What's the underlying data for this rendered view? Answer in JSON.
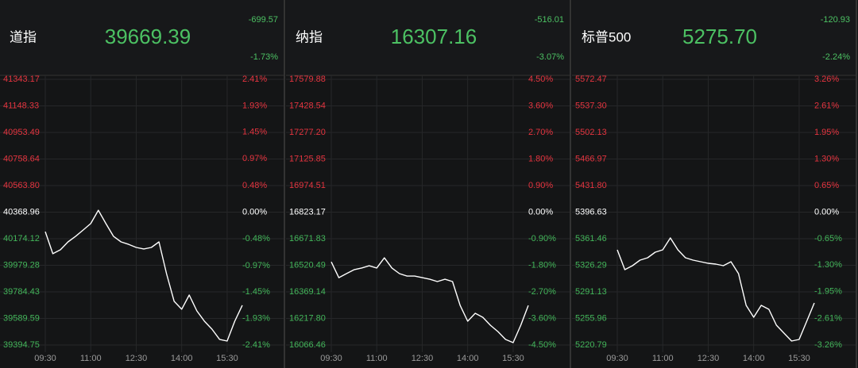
{
  "chart_data": [
    {
      "type": "line",
      "title": "道指",
      "price": "39669.39",
      "change": "-699.57",
      "change_pct": "-1.73%",
      "color": "#ffffff",
      "up_color": "#e5343f",
      "down_color": "#43b65a",
      "flat_color": "#ffffff",
      "categories": [
        "09:30",
        null,
        null,
        null,
        null,
        null,
        "11:00",
        null,
        null,
        null,
        null,
        null,
        "12:30",
        null,
        null,
        null,
        null,
        null,
        "14:00",
        null,
        null,
        null,
        null,
        null,
        "15:30",
        null,
        null
      ],
      "values": [
        40226,
        40064,
        40093,
        40151,
        40192,
        40238,
        40285,
        40383,
        40285,
        40192,
        40151,
        40133,
        40110,
        40099,
        40110,
        40151,
        39918,
        39715,
        39657,
        39761,
        39645,
        39569,
        39511,
        39436,
        39424,
        39569,
        39686
      ],
      "ylim": [
        39394.75,
        41343.17
      ],
      "yticks": [
        41343.17,
        41148.33,
        40953.49,
        40758.64,
        {
          "value": 40563.8,
          "label": "40563.80"
        },
        40368.96,
        40174.12,
        39979.28,
        39784.43,
        39589.59,
        39394.75
      ],
      "y2lim": [
        -2.41,
        2.41
      ],
      "y2ticks": [
        {
          "value": 2.41,
          "label": "2.41%"
        },
        {
          "value": 1.93,
          "label": "1.93%"
        },
        {
          "value": 1.45,
          "label": "1.45%"
        },
        {
          "value": 0.97,
          "label": "0.97%"
        },
        {
          "value": 0.48,
          "label": "0.48%"
        },
        {
          "value": 0,
          "label": "0.00%"
        },
        {
          "value": -0.48,
          "label": "-0.48%"
        },
        {
          "value": -0.97,
          "label": "-0.97%"
        },
        {
          "value": -1.45,
          "label": "-1.45%"
        },
        {
          "value": -1.93,
          "label": "-1.93%"
        },
        {
          "value": -2.41,
          "label": "-2.41%"
        }
      ],
      "grid": true
    },
    {
      "type": "line",
      "title": "纳指",
      "price": "16307.16",
      "change": "-516.01",
      "change_pct": "-3.07%",
      "color": "#ffffff",
      "up_color": "#e5343f",
      "down_color": "#43b65a",
      "flat_color": "#ffffff",
      "categories": [
        "09:30",
        null,
        null,
        null,
        null,
        null,
        "11:00",
        null,
        null,
        null,
        null,
        null,
        "12:30",
        null,
        null,
        null,
        null,
        null,
        "14:00",
        null,
        null,
        null,
        null,
        null,
        "15:30",
        null,
        null
      ],
      "values": [
        16540,
        16450,
        16473,
        16495,
        16505,
        16518,
        16505,
        16563,
        16505,
        16473,
        16459,
        16459,
        16450,
        16441,
        16428,
        16441,
        16428,
        16292,
        16202,
        16247,
        16224,
        16179,
        16143,
        16098,
        16080,
        16179,
        16292
      ],
      "ylim": [
        16066.46,
        17579.88
      ],
      "yticks": [
        17579.88,
        17428.54,
        {
          "value": 17277.2,
          "label": "17277.20"
        },
        17125.85,
        16974.51,
        16823.17,
        16671.83,
        16520.49,
        16369.14,
        {
          "value": 16217.8,
          "label": "16217.80"
        },
        16066.46
      ],
      "y2lim": [
        -4.5,
        4.5
      ],
      "y2ticks": [
        {
          "value": 4.5,
          "label": "4.50%"
        },
        {
          "value": 3.6,
          "label": "3.60%"
        },
        {
          "value": 2.7,
          "label": "2.70%"
        },
        {
          "value": 1.8,
          "label": "1.80%"
        },
        {
          "value": 0.9,
          "label": "0.90%"
        },
        {
          "value": 0,
          "label": "0.00%"
        },
        {
          "value": -0.9,
          "label": "-0.90%"
        },
        {
          "value": -1.8,
          "label": "-1.80%"
        },
        {
          "value": -2.7,
          "label": "-2.70%"
        },
        {
          "value": -3.6,
          "label": "-3.60%"
        },
        {
          "value": -4.5,
          "label": "-4.50%"
        }
      ],
      "grid": true
    },
    {
      "type": "line",
      "title": "标普500",
      "price": "5275.70",
      "change": "-120.93",
      "change_pct": "-2.24%",
      "color": "#ffffff",
      "up_color": "#e5343f",
      "down_color": "#43b65a",
      "flat_color": "#ffffff",
      "categories": [
        "09:30",
        null,
        null,
        null,
        null,
        null,
        "11:00",
        null,
        null,
        null,
        null,
        null,
        "12:30",
        null,
        null,
        null,
        null,
        null,
        "14:00",
        null,
        null,
        null,
        null,
        null,
        "15:30",
        null,
        null
      ],
      "values": [
        5346.8,
        5320.5,
        5325.8,
        5333.1,
        5336.3,
        5343.6,
        5346.8,
        5362.5,
        5346.8,
        5336.3,
        5333.1,
        5331.0,
        5328.9,
        5327.9,
        5325.8,
        5331.0,
        5315.3,
        5273.3,
        5257.5,
        5273.3,
        5268.0,
        5247.0,
        5236.5,
        5226.0,
        5228.1,
        5252.3,
        5276.4
      ],
      "ylim": [
        5220.79,
        5572.47
      ],
      "yticks": [
        5572.47,
        {
          "value": 5537.3,
          "label": "5537.30"
        },
        5502.13,
        5466.97,
        {
          "value": 5431.8,
          "label": "5431.80"
        },
        5396.63,
        5361.46,
        5326.29,
        5291.13,
        5255.96,
        5220.79
      ],
      "y2lim": [
        -3.26,
        3.26
      ],
      "y2ticks": [
        {
          "value": 3.26,
          "label": "3.26%"
        },
        {
          "value": 2.61,
          "label": "2.61%"
        },
        {
          "value": 1.95,
          "label": "1.95%"
        },
        {
          "value": 1.3,
          "label": "1.30%"
        },
        {
          "value": 0.65,
          "label": "0.65%"
        },
        {
          "value": 0,
          "label": "0.00%"
        },
        {
          "value": -0.65,
          "label": "-0.65%"
        },
        {
          "value": -1.3,
          "label": "-1.30%"
        },
        {
          "value": -1.95,
          "label": "-1.95%"
        },
        {
          "value": -2.61,
          "label": "-2.61%"
        },
        {
          "value": -3.26,
          "label": "-3.26%"
        }
      ],
      "grid": true
    }
  ]
}
